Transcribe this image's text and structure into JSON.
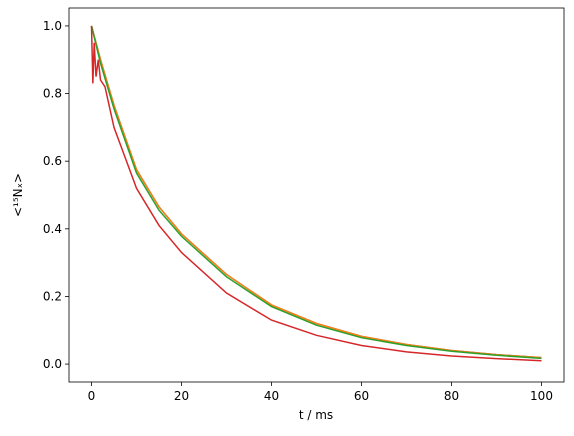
{
  "chart_data": {
    "type": "line",
    "xlabel": "t / ms",
    "ylabel": "<¹⁵Nₓ>",
    "xlim": [
      -5,
      105
    ],
    "ylim": [
      -0.053,
      1.053
    ],
    "xticks": [
      0,
      20,
      40,
      60,
      80,
      100
    ],
    "yticks": [
      {
        "value": 0,
        "label": "0.0"
      },
      0.2,
      0.4,
      0.6,
      0.8,
      {
        "value": 1,
        "label": "1.0"
      }
    ],
    "series": [
      {
        "color": "#1f77b4",
        "x": [
          0,
          2,
          5,
          10,
          15,
          20,
          30,
          40,
          50,
          60,
          70,
          80,
          90,
          100
        ],
        "values": [
          1.0,
          0.9,
          0.765,
          0.575,
          0.465,
          0.385,
          0.265,
          0.175,
          0.12,
          0.082,
          0.058,
          0.04,
          0.028,
          0.019
        ]
      },
      {
        "color": "#ff7f0e",
        "x": [
          0,
          2,
          5,
          10,
          15,
          20,
          30,
          40,
          50,
          60,
          70,
          80,
          90,
          100
        ],
        "values": [
          1.0,
          0.9,
          0.765,
          0.575,
          0.465,
          0.385,
          0.265,
          0.175,
          0.12,
          0.082,
          0.058,
          0.04,
          0.028,
          0.019
        ]
      },
      {
        "color": "#2ca02c",
        "x": [
          0,
          2,
          5,
          10,
          15,
          20,
          30,
          40,
          50,
          60,
          70,
          80,
          90,
          100
        ],
        "values": [
          1.0,
          0.89,
          0.755,
          0.565,
          0.455,
          0.378,
          0.258,
          0.17,
          0.115,
          0.078,
          0.055,
          0.038,
          0.026,
          0.017
        ]
      },
      {
        "color": "#d62728",
        "x": [
          0,
          0.3,
          0.6,
          1,
          1.5,
          2,
          3,
          5,
          10,
          15,
          20,
          30,
          40,
          50,
          60,
          70,
          80,
          90,
          100
        ],
        "values": [
          1.0,
          0.83,
          0.95,
          0.85,
          0.9,
          0.84,
          0.82,
          0.7,
          0.52,
          0.41,
          0.33,
          0.21,
          0.13,
          0.085,
          0.055,
          0.036,
          0.024,
          0.016,
          0.01
        ]
      }
    ]
  }
}
